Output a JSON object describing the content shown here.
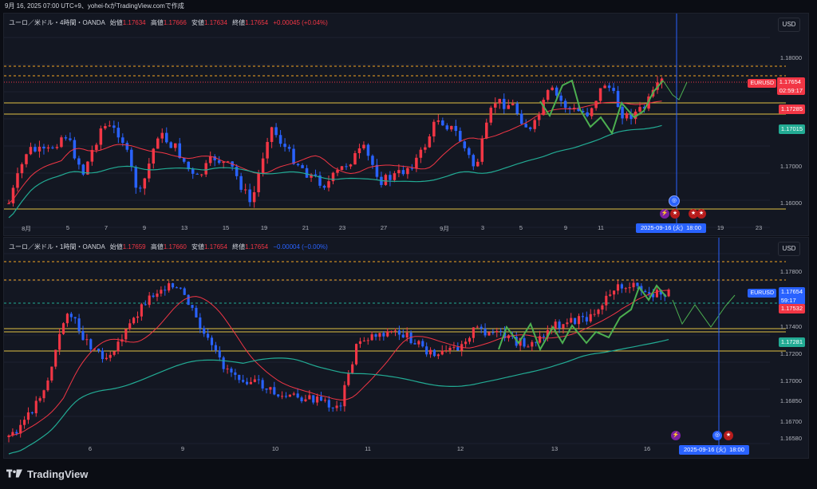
{
  "header": {
    "text": "9月 16, 2025 07:00 UTC+9、yohei-fxがTradingView.comで作成"
  },
  "panel1": {
    "symbol": "ユーロ／米ドル・4時間・OANDA",
    "open_label": "始値",
    "open": "1.17634",
    "high_label": "高値",
    "high": "1.17666",
    "low_label": "安値",
    "low": "1.17634",
    "close_label": "終値",
    "close": "1.17654",
    "change": "+0.00045 (+0.04%)",
    "currency": "USD",
    "yticks": [
      "1.18000",
      "1.17500",
      "1.17000",
      "1.16500",
      "1.16000"
    ],
    "price_tags": [
      {
        "label": "1.17654",
        "sub": "02:59:17",
        "color": "#f23645"
      },
      {
        "label": "1.17285",
        "color": "#f23645"
      },
      {
        "label": "1.17015",
        "color": "#22ab94"
      }
    ],
    "symbol_tag": "EURUSD",
    "xticks": [
      "8月",
      "5",
      "7",
      "9",
      "13",
      "15",
      "19",
      "21",
      "23",
      "27",
      "9月",
      "3",
      "5",
      "9",
      "11",
      "19",
      "23"
    ],
    "date_box": {
      "date": "2025-09-16 (火)",
      "time": "18:00"
    }
  },
  "panel2": {
    "symbol": "ユーロ／米ドル・1時間・OANDA",
    "open_label": "始値",
    "open": "1.17659",
    "high_label": "高値",
    "high": "1.17660",
    "low_label": "安値",
    "low": "1.17654",
    "close_label": "終値",
    "close": "1.17654",
    "change": "−0.00004 (−0.00%)",
    "currency": "USD",
    "yticks": [
      "1.17800",
      "1.17400",
      "1.17200",
      "1.17000",
      "1.16850",
      "1.16700",
      "1.16580"
    ],
    "price_tags": [
      {
        "label": "1.17654",
        "sub": "59:17",
        "color": "#2962ff"
      },
      {
        "label": "1.17532",
        "color": "#f23645"
      },
      {
        "label": "1.17281",
        "color": "#22ab94"
      }
    ],
    "symbol_tag": "EURUSD",
    "xticks": [
      "6",
      "9",
      "10",
      "11",
      "12",
      "13",
      "16"
    ],
    "date_box": {
      "date": "2025-09-16 (火)",
      "time": "18:00"
    }
  },
  "footer": {
    "brand": "TradingView"
  },
  "colors": {
    "bull": "#f23645",
    "bear": "#2962ff",
    "ma_fast": "#f23645",
    "ma_slow": "#22ab94",
    "level": "#e2c044",
    "harmonic": "#4caf50",
    "dash": "#f5a623",
    "cursor": "#2962ff"
  }
}
